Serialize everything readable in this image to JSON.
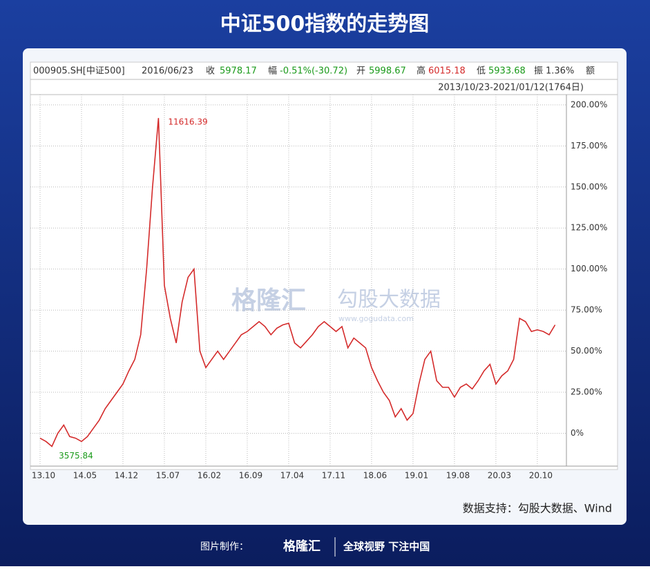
{
  "page": {
    "title": "中证500指数的走势图",
    "header": [
      "000905.SH[中证500]",
      "2016/06/23",
      "收",
      "5978.17",
      "幅",
      "-0.51%(-30.72)",
      "开",
      "5998.67",
      "高",
      "6015.18",
      "低",
      "5933.68",
      "振",
      "1.36%",
      "额"
    ],
    "range": "2013/10/23-2021/01/12(1764日)",
    "watermark": [
      "格隆汇",
      "勾股大数据",
      "www.gogudata.com"
    ],
    "source": "数据支持：勾股大数据、Wind",
    "footer": [
      "图片制作：",
      "格隆汇",
      "全球视野 下注中国"
    ]
  },
  "chart_data": {
    "type": "line",
    "categories": [
      "13.10",
      null,
      null,
      null,
      null,
      null,
      null,
      "14.05",
      null,
      null,
      null,
      null,
      null,
      null,
      "14.12",
      null,
      null,
      null,
      null,
      null,
      null,
      "15.07",
      null,
      null,
      null,
      null,
      null,
      null,
      "16.02",
      null,
      null,
      null,
      null,
      null,
      null,
      "16.09",
      null,
      null,
      null,
      null,
      null,
      null,
      "17.04",
      null,
      null,
      null,
      null,
      null,
      null,
      "17.11",
      null,
      null,
      null,
      null,
      null,
      null,
      "18.06",
      null,
      null,
      null,
      null,
      null,
      null,
      "19.01",
      null,
      null,
      null,
      null,
      null,
      null,
      "19.08",
      null,
      null,
      null,
      null,
      null,
      null,
      "20.03",
      null,
      null,
      null,
      null,
      null,
      null,
      "20.10",
      null,
      null,
      null
    ],
    "series": [
      {
        "name": "中证500",
        "color": "#d42a2a",
        "values": [
          -3,
          -5,
          -8,
          0,
          5,
          -2,
          -3,
          -5,
          -2,
          3,
          8,
          15,
          20,
          25,
          30,
          38,
          45,
          60,
          100,
          150,
          192,
          90,
          70,
          55,
          80,
          95,
          100,
          50,
          40,
          45,
          50,
          45,
          50,
          55,
          60,
          62,
          65,
          68,
          65,
          60,
          64,
          66,
          67,
          55,
          52,
          56,
          60,
          65,
          68,
          65,
          62,
          65,
          52,
          58,
          55,
          52,
          40,
          32,
          25,
          20,
          10,
          15,
          8,
          12,
          30,
          45,
          50,
          32,
          28,
          28,
          22,
          28,
          30,
          27,
          32,
          38,
          42,
          30,
          35,
          38,
          45,
          70,
          68,
          62,
          63,
          62,
          60,
          66
        ]
      }
    ],
    "annotations": [
      "11616.39",
      "3575.84"
    ],
    "ylim": [
      -20,
      205
    ],
    "yticks": [
      {
        "value": 0,
        "label": "0%"
      },
      {
        "value": 25,
        "label": "25.00%"
      },
      {
        "value": 50,
        "label": "50.00%"
      },
      {
        "value": 75,
        "label": "75.00%"
      },
      {
        "value": 100,
        "label": "100.00%"
      },
      {
        "value": 125,
        "label": "125.00%"
      },
      {
        "value": 150,
        "label": "150.00%"
      },
      {
        "value": 175,
        "label": "175.00%"
      },
      {
        "value": 200,
        "label": "200.00%"
      }
    ],
    "grid": true
  }
}
